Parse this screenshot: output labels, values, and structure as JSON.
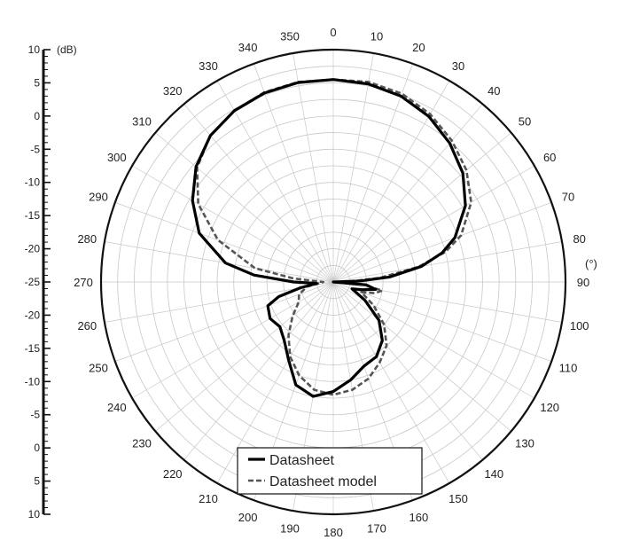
{
  "chart_data": {
    "type": "polar-line",
    "radial_unit": "(dB)",
    "angle_unit": "(°)",
    "radial_range": [
      -25,
      10
    ],
    "radial_ticks": [
      10,
      5,
      0,
      -5,
      -10,
      -15,
      -20,
      -25
    ],
    "radial_scale_labels": [
      "10",
      "5",
      "0",
      "-5",
      "-10",
      "-15",
      "-20",
      "-25",
      "-20",
      "-15",
      "-10",
      "-5",
      "0",
      "5",
      "10"
    ],
    "angle_ticks": [
      "0",
      "10",
      "20",
      "30",
      "40",
      "50",
      "60",
      "70",
      "80",
      "90",
      "100",
      "110",
      "120",
      "130",
      "140",
      "150",
      "160",
      "170",
      "180",
      "190",
      "200",
      "210",
      "220",
      "230",
      "240",
      "250",
      "260",
      "270",
      "280",
      "290",
      "300",
      "310",
      "320",
      "330",
      "340",
      "350"
    ],
    "grid": true,
    "legend_position": "bottom-center",
    "series": [
      {
        "name": "Datasheet",
        "style": "solid",
        "points": [
          [
            0,
            5.5
          ],
          [
            10,
            5.3
          ],
          [
            20,
            4.8
          ],
          [
            30,
            3.8
          ],
          [
            40,
            2.3
          ],
          [
            50,
            0.5
          ],
          [
            60,
            -2.0
          ],
          [
            70,
            -5.5
          ],
          [
            75,
            -8.0
          ],
          [
            80,
            -11.5
          ],
          [
            85,
            -16.5
          ],
          [
            88,
            -21.0
          ],
          [
            90,
            -25.0
          ],
          [
            95,
            -20.0
          ],
          [
            100,
            -18.5
          ],
          [
            105,
            -20.5
          ],
          [
            110,
            -22.0
          ],
          [
            120,
            -19.5
          ],
          [
            130,
            -16.0
          ],
          [
            140,
            -13.5
          ],
          [
            150,
            -12.0
          ],
          [
            160,
            -11.5
          ],
          [
            170,
            -10.0
          ],
          [
            180,
            -8.5
          ],
          [
            190,
            -7.5
          ],
          [
            200,
            -8.5
          ],
          [
            210,
            -11.5
          ],
          [
            220,
            -13.5
          ],
          [
            230,
            -14.5
          ],
          [
            240,
            -14.0
          ],
          [
            250,
            -14.5
          ],
          [
            255,
            -16.5
          ],
          [
            260,
            -20.0
          ],
          [
            265,
            -22.5
          ],
          [
            270,
            -19.0
          ],
          [
            275,
            -13.0
          ],
          [
            280,
            -8.5
          ],
          [
            290,
            -3.5
          ],
          [
            300,
            -0.5
          ],
          [
            310,
            2.0
          ],
          [
            320,
            3.8
          ],
          [
            330,
            4.8
          ],
          [
            340,
            5.3
          ],
          [
            350,
            5.5
          ]
        ]
      },
      {
        "name": "Datasheet model",
        "style": "dashed",
        "points": [
          [
            0,
            5.5
          ],
          [
            10,
            5.6
          ],
          [
            20,
            5.2
          ],
          [
            30,
            4.2
          ],
          [
            40,
            2.8
          ],
          [
            50,
            1.2
          ],
          [
            60,
            -1.0
          ],
          [
            70,
            -4.5
          ],
          [
            75,
            -7.5
          ],
          [
            80,
            -12.0
          ],
          [
            85,
            -18.0
          ],
          [
            88,
            -22.5
          ],
          [
            90,
            -25.0
          ],
          [
            95,
            -20.5
          ],
          [
            100,
            -17.5
          ],
          [
            105,
            -18.5
          ],
          [
            110,
            -20.5
          ],
          [
            120,
            -18.0
          ],
          [
            130,
            -15.0
          ],
          [
            140,
            -12.5
          ],
          [
            150,
            -11.0
          ],
          [
            160,
            -9.5
          ],
          [
            170,
            -8.5
          ],
          [
            180,
            -8.0
          ],
          [
            190,
            -8.5
          ],
          [
            200,
            -10.0
          ],
          [
            210,
            -12.0
          ],
          [
            220,
            -14.5
          ],
          [
            230,
            -17.0
          ],
          [
            240,
            -19.0
          ],
          [
            250,
            -19.5
          ],
          [
            260,
            -21.0
          ],
          [
            265,
            -23.0
          ],
          [
            270,
            -23.5
          ],
          [
            275,
            -19.0
          ],
          [
            280,
            -13.0
          ],
          [
            290,
            -6.5
          ],
          [
            300,
            -1.5
          ],
          [
            310,
            1.8
          ],
          [
            320,
            3.8
          ],
          [
            330,
            4.8
          ],
          [
            340,
            5.4
          ],
          [
            350,
            5.6
          ]
        ]
      }
    ]
  },
  "colors": {
    "grid": "#c8c8c8",
    "outer_ring": "#111111",
    "datasheet": "#000000",
    "datasheet_model": "#555555"
  }
}
